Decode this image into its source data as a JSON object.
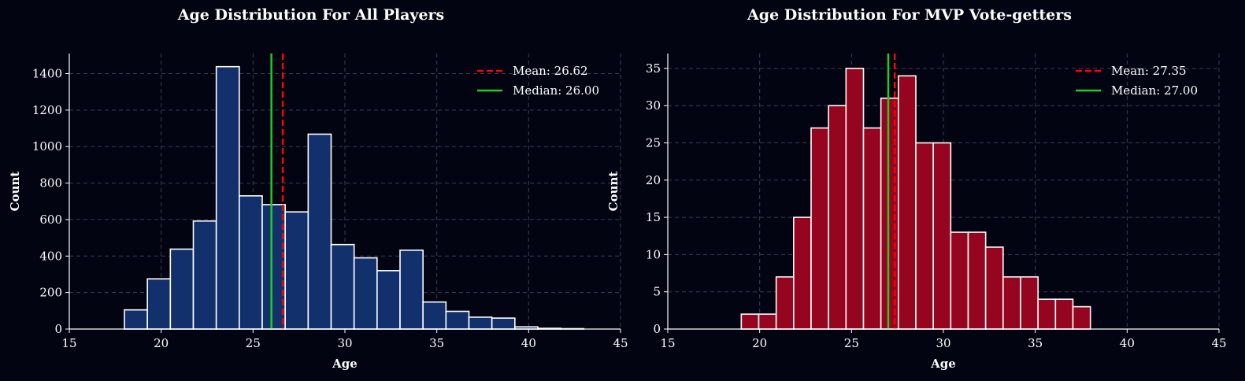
{
  "chart_data": [
    {
      "type": "bar",
      "title": "Age Distribution For All Players",
      "xlabel": "Age",
      "ylabel": "Count",
      "xlim": [
        15,
        45
      ],
      "ylim": [
        0,
        1510
      ],
      "xticks": [
        15,
        20,
        25,
        30,
        35,
        40,
        45
      ],
      "yticks": [
        0,
        200,
        400,
        600,
        800,
        1000,
        1200,
        1400
      ],
      "grid": true,
      "bar_color": "#12306c",
      "bin_edges": [
        18.0,
        19.25,
        20.5,
        21.75,
        23.0,
        24.25,
        25.5,
        26.75,
        28.0,
        29.25,
        30.5,
        31.75,
        33.0,
        34.25,
        35.5,
        36.75,
        38.0,
        39.25,
        40.5,
        41.75,
        43.0
      ],
      "values": [
        105,
        275,
        438,
        592,
        1438,
        730,
        682,
        642,
        1068,
        463,
        390,
        320,
        432,
        148,
        97,
        65,
        60,
        12,
        4,
        2
      ],
      "mean": 26.62,
      "median": 26.0,
      "legend": [
        "Mean: 26.62",
        "Median: 26.00"
      ],
      "legend_position": "top-right"
    },
    {
      "type": "bar",
      "title": "Age Distribution For MVP Vote-getters",
      "xlabel": "Age",
      "ylabel": "Count",
      "xlim": [
        15,
        45
      ],
      "ylim": [
        0,
        37
      ],
      "xticks": [
        15,
        20,
        25,
        30,
        35,
        40,
        45
      ],
      "yticks": [
        0,
        5,
        10,
        15,
        20,
        25,
        30,
        35
      ],
      "grid": true,
      "bar_color": "#960520",
      "bin_edges": [
        19.0,
        19.95,
        20.9,
        21.85,
        22.8,
        23.75,
        24.7,
        25.65,
        26.6,
        27.55,
        28.5,
        29.45,
        30.4,
        31.35,
        32.3,
        33.25,
        34.2,
        35.15,
        36.1,
        37.05,
        38.0
      ],
      "values": [
        2,
        2,
        7,
        15,
        27,
        30,
        35,
        27,
        31,
        34,
        25,
        25,
        13,
        13,
        11,
        7,
        7,
        4,
        4,
        3
      ],
      "mean": 27.35,
      "median": 27.0,
      "legend": [
        "Mean: 27.35",
        "Median: 27.00"
      ],
      "legend_position": "top-right"
    }
  ],
  "colors": {
    "background": "#020412",
    "mean_line": "#ff0000",
    "median_line": "#22cc22",
    "grid": "#3a3f52",
    "bar_edge": "#ffffff"
  }
}
